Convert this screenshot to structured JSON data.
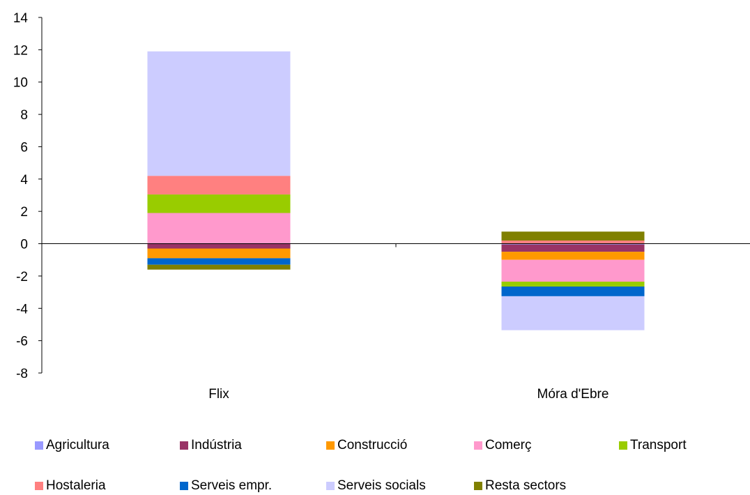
{
  "chart_data": {
    "type": "bar",
    "stacked": true,
    "title": "",
    "xlabel": "",
    "ylabel": "",
    "ylim": [
      -8,
      14
    ],
    "yticks": [
      14,
      12,
      10,
      8,
      6,
      4,
      2,
      0,
      -2,
      -4,
      -6,
      -8
    ],
    "grid": false,
    "legend_position": "bottom",
    "categories": [
      "Flix",
      "Móra d'Ebre"
    ],
    "series": [
      {
        "name": "Agricultura",
        "color": "#9999ff",
        "values": [
          0.0,
          -0.05
        ]
      },
      {
        "name": "Indústria",
        "color": "#993366",
        "values": [
          -0.3,
          -0.45
        ]
      },
      {
        "name": "Construcció",
        "color": "#ff9900",
        "values": [
          -0.6,
          -0.5
        ]
      },
      {
        "name": "Comerç",
        "color": "#ff99cc",
        "values": [
          1.9,
          -1.35
        ]
      },
      {
        "name": "Transport",
        "color": "#99cc00",
        "values": [
          1.15,
          -0.3
        ]
      },
      {
        "name": "Hostaleria",
        "color": "#ff8080",
        "values": [
          1.15,
          0.2
        ]
      },
      {
        "name": "Serveis empr.",
        "color": "#0066cc",
        "values": [
          -0.4,
          -0.6
        ]
      },
      {
        "name": "Serveis socials",
        "color": "#ccccff",
        "values": [
          7.7,
          -2.1
        ]
      },
      {
        "name": "Resta sectors",
        "color": "#808000",
        "values": [
          -0.3,
          0.55
        ]
      }
    ]
  }
}
